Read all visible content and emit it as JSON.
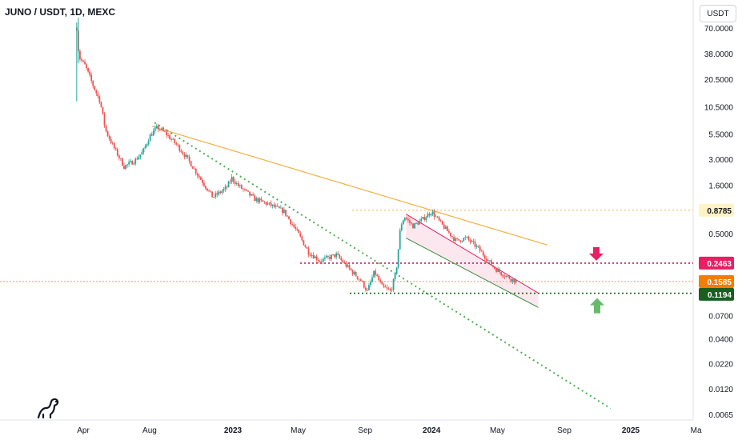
{
  "chart_data": {
    "type": "candlestick",
    "title": "JUNO / USDT, 1D, MEXC",
    "currency": "USDT",
    "y_scale": "log",
    "ylim": [
      0.0055,
      90
    ],
    "y_ticks": [
      "70.0000",
      "38.0000",
      "20.5000",
      "10.5000",
      "5.5000",
      "3.0000",
      "1.6000",
      "0.5000",
      "0.0700",
      "0.0400",
      "0.0220",
      "0.0120",
      "0.0065"
    ],
    "x_ticks": [
      "Apr",
      "Aug",
      "2023",
      "May",
      "Sep",
      "2024",
      "May",
      "Sep",
      "2025",
      "Ma"
    ],
    "price_labels": [
      {
        "value": "0.8785",
        "bg": "#fff3c4",
        "fg": "#131722"
      },
      {
        "value": "0.2463",
        "bg": "#e91e63",
        "fg": "#ffffff"
      },
      {
        "value": "0.1585",
        "bg": "#f57c00",
        "fg": "#ffffff"
      },
      {
        "value": "0.1194",
        "bg": "#1b5e20",
        "fg": "#ffffff"
      }
    ],
    "price_path": [
      [
        "2022-03-20",
        70
      ],
      [
        "2022-03-24",
        35
      ],
      [
        "2022-04-05",
        28
      ],
      [
        "2022-04-20",
        17
      ],
      [
        "2022-05-02",
        12
      ],
      [
        "2022-05-12",
        6.0
      ],
      [
        "2022-05-25",
        4.2
      ],
      [
        "2022-06-15",
        2.5
      ],
      [
        "2022-07-05",
        2.9
      ],
      [
        "2022-07-20",
        3.6
      ],
      [
        "2022-08-01",
        5.2
      ],
      [
        "2022-08-15",
        6.4
      ],
      [
        "2022-08-30",
        5.6
      ],
      [
        "2022-09-20",
        4.2
      ],
      [
        "2022-10-10",
        3.0
      ],
      [
        "2022-10-30",
        2.0
      ],
      [
        "2022-11-25",
        1.2
      ],
      [
        "2022-12-20",
        1.5
      ],
      [
        "2022-12-30",
        1.9
      ],
      [
        "2023-01-10",
        1.6
      ],
      [
        "2023-02-10",
        1.15
      ],
      [
        "2023-03-10",
        1.0
      ],
      [
        "2023-04-05",
        0.85
      ],
      [
        "2023-05-01",
        0.5
      ],
      [
        "2023-05-20",
        0.32
      ],
      [
        "2023-06-10",
        0.26
      ],
      [
        "2023-07-10",
        0.3
      ],
      [
        "2023-08-01",
        0.22
      ],
      [
        "2023-08-25",
        0.16
      ],
      [
        "2023-09-05",
        0.125
      ],
      [
        "2023-09-18",
        0.2
      ],
      [
        "2023-10-02",
        0.14
      ],
      [
        "2023-10-18",
        0.125
      ],
      [
        "2023-10-28",
        0.2
      ],
      [
        "2023-11-05",
        0.6
      ],
      [
        "2023-11-12",
        0.75
      ],
      [
        "2023-11-28",
        0.6
      ],
      [
        "2023-12-15",
        0.7
      ],
      [
        "2024-01-01",
        0.85
      ],
      [
        "2024-01-20",
        0.62
      ],
      [
        "2024-02-15",
        0.42
      ],
      [
        "2024-03-05",
        0.45
      ],
      [
        "2024-03-25",
        0.36
      ],
      [
        "2024-04-10",
        0.28
      ],
      [
        "2024-04-25",
        0.22
      ],
      [
        "2024-05-10",
        0.19
      ],
      [
        "2024-05-25",
        0.17
      ],
      [
        "2024-06-05",
        0.1585
      ]
    ]
  }
}
